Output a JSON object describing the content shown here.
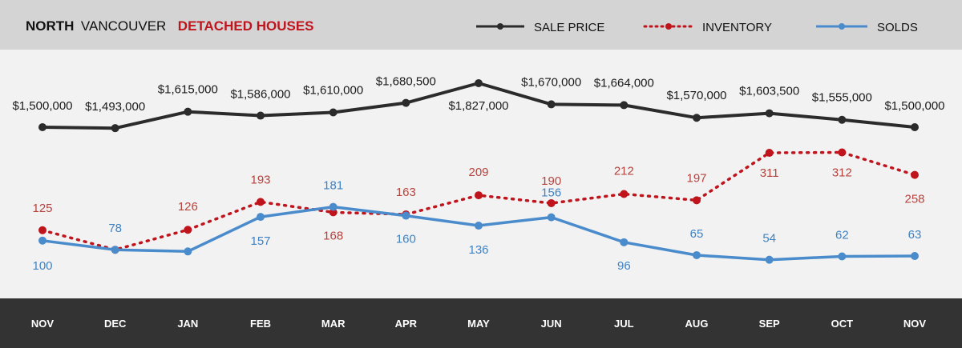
{
  "title": {
    "part1": "NORTH",
    "part2": "VANCOUVER",
    "part3": "DETACHED HOUSES"
  },
  "legend": {
    "sale_price": "SALE PRICE",
    "inventory": "INVENTORY",
    "solds": "SOLDS"
  },
  "colors": {
    "sale_price": "#2b2b2b",
    "inventory": "#c0141d",
    "solds": "#4a8bcc",
    "header_band": "#d4d4d4",
    "footer_band": "#333333",
    "title_accent": "#c0141d"
  },
  "chart_data": {
    "type": "line",
    "categories": [
      "NOV",
      "DEC",
      "JAN",
      "FEB",
      "MAR",
      "APR",
      "MAY",
      "JUN",
      "JUL",
      "AUG",
      "SEP",
      "OCT",
      "NOV"
    ],
    "series": [
      {
        "name": "SALE PRICE",
        "values": [
          1500000,
          1493000,
          1615000,
          1586000,
          1610000,
          1680500,
          1827000,
          1670000,
          1664000,
          1570000,
          1603500,
          1555000,
          1500000
        ],
        "labels": [
          "$1,500,000",
          "$1,493,000",
          "$1,615,000",
          "$1,586,000",
          "$1,610,000",
          "$1,680,500",
          "$1,827,000",
          "$1,670,000",
          "$1,664,000",
          "$1,570,000",
          "$1,603,500",
          "$1,555,000",
          "$1,500,000"
        ],
        "style": "solid"
      },
      {
        "name": "INVENTORY",
        "values": [
          125,
          78,
          126,
          193,
          168,
          163,
          209,
          190,
          212,
          197,
          311,
          312,
          258
        ],
        "labels": [
          "125",
          "",
          "126",
          "193",
          "168",
          "163",
          "209",
          "190",
          "212",
          "197",
          "311",
          "312",
          "258"
        ],
        "style": "dotted"
      },
      {
        "name": "SOLDS",
        "values": [
          100,
          78,
          74,
          157,
          181,
          160,
          136,
          156,
          96,
          65,
          54,
          62,
          63
        ],
        "labels": [
          "100",
          "78",
          "",
          "157",
          "181",
          "160",
          "136",
          "156",
          "96",
          "65",
          "54",
          "62",
          "63"
        ],
        "style": "solid"
      }
    ],
    "grid": false,
    "legend_position": "top-right"
  }
}
